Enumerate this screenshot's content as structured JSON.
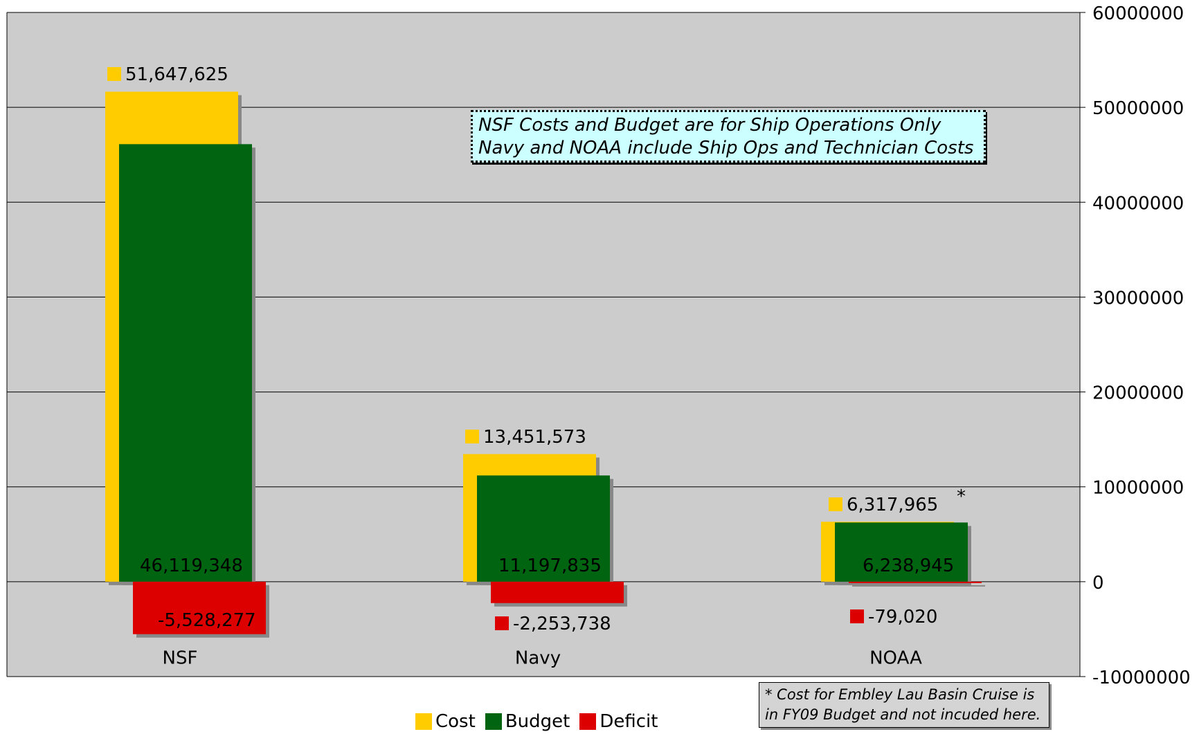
{
  "chart_data": {
    "type": "bar",
    "categories": [
      "NSF",
      "Navy",
      "NOAA"
    ],
    "series": [
      {
        "name": "Cost",
        "color": "#ffcc00",
        "values": [
          51647625,
          13451573,
          6317965
        ],
        "labels": [
          "51,647,625",
          "13,451,573",
          "6,317,965"
        ]
      },
      {
        "name": "Budget",
        "color": "#006411",
        "values": [
          46119348,
          11197835,
          6238945
        ],
        "labels": [
          "46,119,348",
          "11,197,835",
          "6,238,945"
        ]
      },
      {
        "name": "Deficit",
        "color": "#dd0000",
        "values": [
          -5528277,
          -2253738,
          -79020
        ],
        "labels": [
          "-5,528,277",
          "-2,253,738",
          "-79,020"
        ]
      }
    ],
    "yticks": [
      "60000000",
      "50000000",
      "40000000",
      "30000000",
      "20000000",
      "10000000",
      "0",
      "-10000000"
    ],
    "ylim": [
      -10000000,
      60000000
    ],
    "grid": true,
    "plot_background": "#cccccc",
    "legend_position": "bottom",
    "noaa_marker": "*",
    "annotation_lines": [
      "NSF Costs and Budget are for Ship Operations Only",
      "Navy and NOAA include Ship Ops and Technician Costs"
    ],
    "footnote_lines": [
      "* Cost for Embley Lau Basin Cruise is",
      "in FY09 Budget and not incuded here."
    ]
  }
}
